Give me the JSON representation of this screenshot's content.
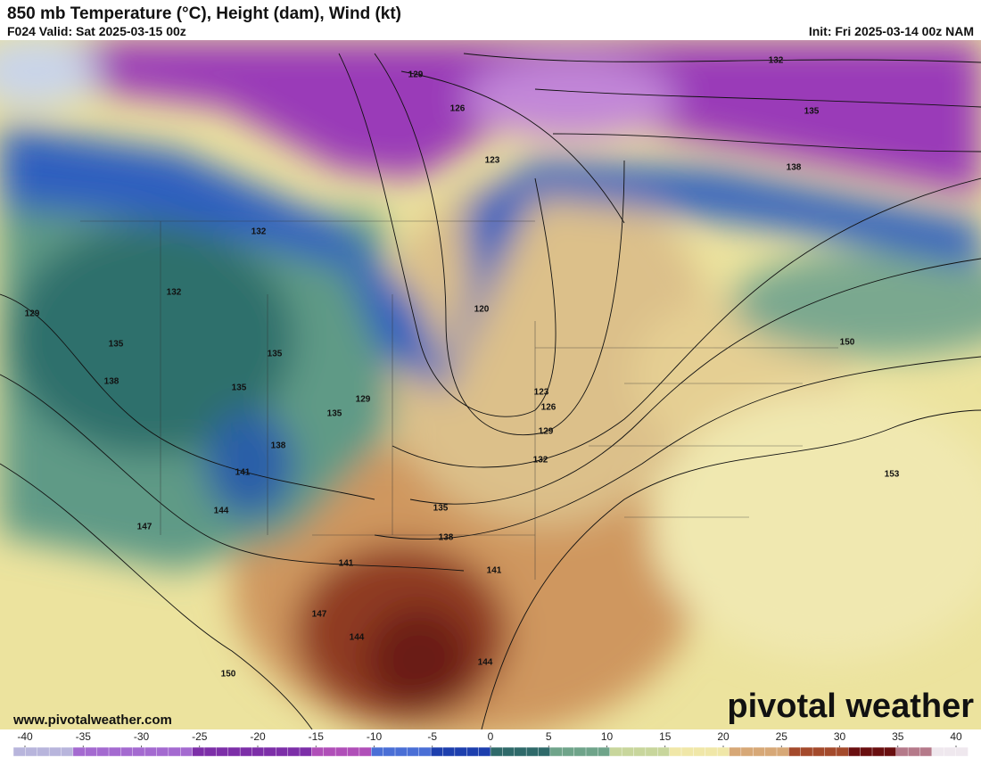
{
  "header": {
    "title": "850 mb Temperature (°C), Height (dam), Wind (kt)",
    "valid": "F024 Valid: Sat 2025-03-15 00z",
    "init": "Init: Fri 2025-03-14 00z NAM"
  },
  "contour_labels": [
    129,
    132,
    126,
    135,
    123,
    138,
    132,
    132,
    129,
    120,
    135,
    150,
    138,
    135,
    135,
    129,
    135,
    123,
    126,
    129,
    138,
    132,
    141,
    153,
    135,
    144,
    147,
    138,
    141,
    141,
    147,
    144,
    144,
    150
  ],
  "colorbar": {
    "ticks": [
      -40,
      -35,
      -30,
      -25,
      -20,
      -15,
      -10,
      -5,
      0,
      5,
      10,
      15,
      20,
      25,
      30,
      35,
      40
    ]
  },
  "footer": {
    "url": "www.pivotalweather.com",
    "logo": "pivotal weather"
  }
}
